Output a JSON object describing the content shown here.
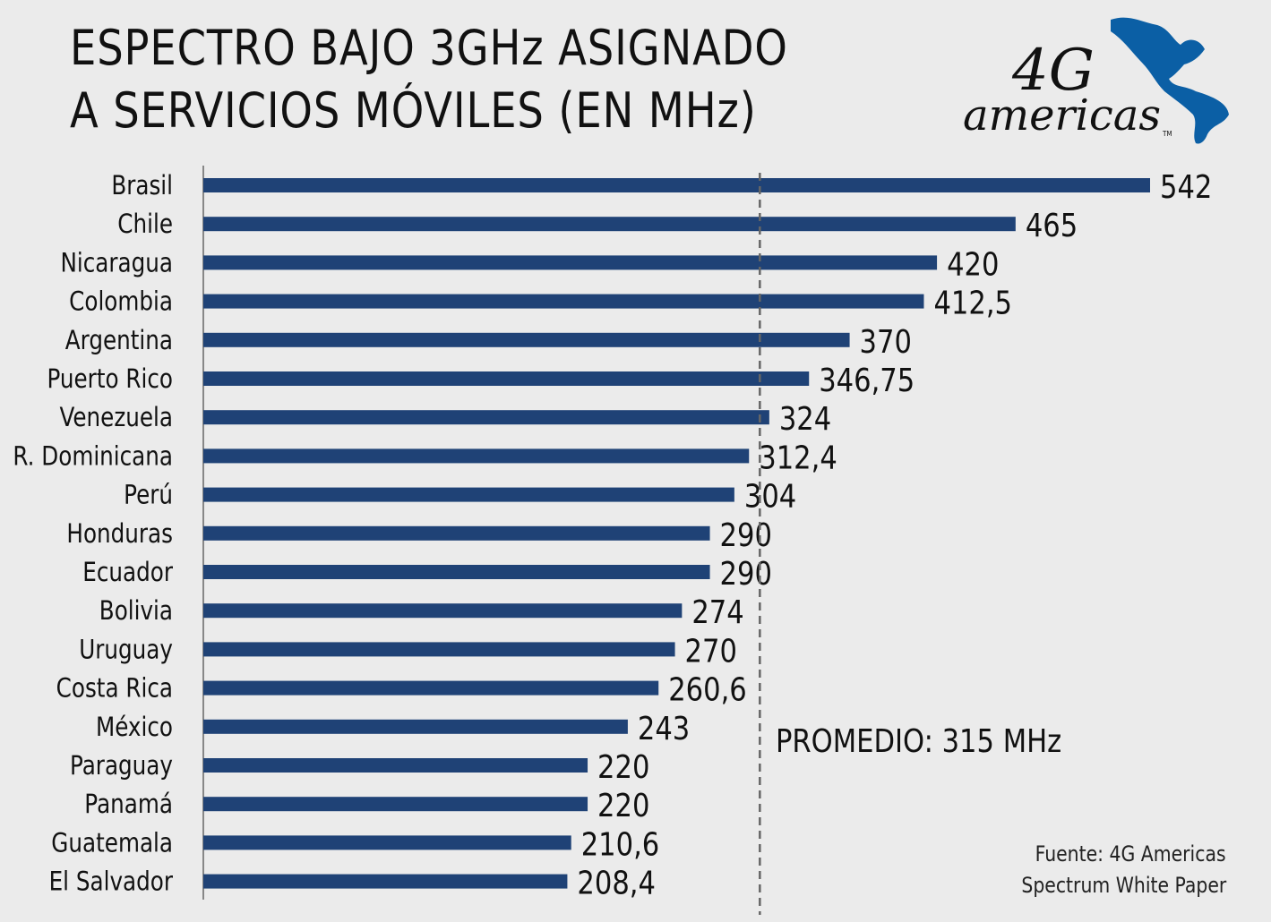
{
  "title_line1": "ESPECTRO BAJO 3GHz ASIGNADO",
  "title_line2": "A SERVICIOS MÓVILES (EN MHz)",
  "logo": {
    "text_main": "4G",
    "text_sub": "americas",
    "tm": "TM",
    "color": "#0b5fa5"
  },
  "source_line1": "Fuente: 4G Americas",
  "source_line2": "Spectrum White Paper",
  "chart_data": {
    "type": "bar",
    "orientation": "horizontal",
    "categories": [
      "Brasil",
      "Chile",
      "Nicaragua",
      "Colombia",
      "Argentina",
      "Puerto Rico",
      "Venezuela",
      "R. Dominicana",
      "Perú",
      "Honduras",
      "Ecuador",
      "Bolivia",
      "Uruguay",
      "Costa Rica",
      "México",
      "Paraguay",
      "Panamá",
      "Guatemala",
      "El Salvador"
    ],
    "values": [
      542,
      465,
      420,
      412.5,
      370,
      346.75,
      324,
      312.4,
      304,
      290,
      290,
      274,
      270,
      260.6,
      243,
      220,
      220,
      210.6,
      208.4
    ],
    "value_labels": [
      "542",
      "465",
      "420",
      "412,5",
      "370",
      "346,75",
      "324",
      "312,4",
      "304",
      "290",
      "290",
      "274",
      "270",
      "260,6",
      "243",
      "220",
      "220",
      "210,6",
      "208,4"
    ],
    "average": {
      "value": 315,
      "label": "PROMEDIO: 315 MHz"
    },
    "xlim": [
      0,
      542
    ],
    "grid": false,
    "bar_color": "#1f4276"
  }
}
